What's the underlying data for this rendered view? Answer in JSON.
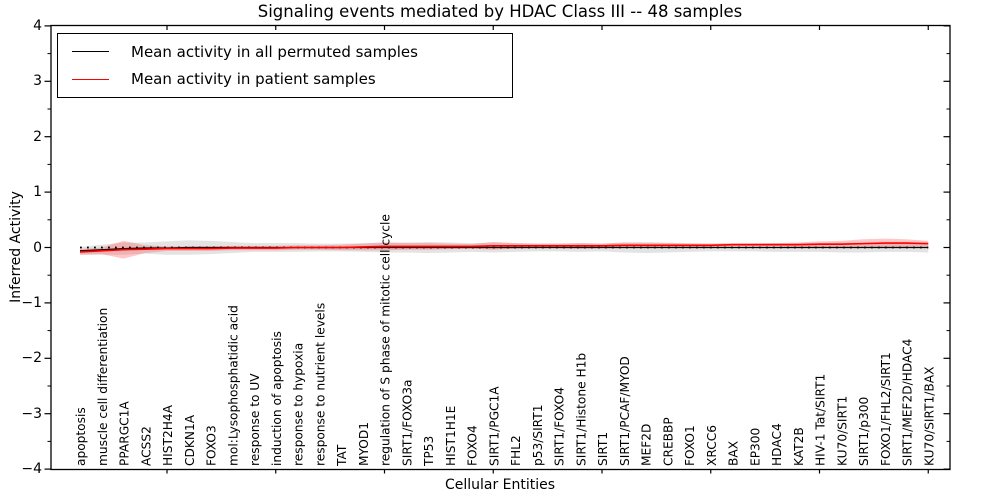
{
  "chart_data": {
    "type": "line",
    "title": "Signaling events mediated by HDAC Class III -- 48 samples",
    "xlabel": "Cellular Entities",
    "ylabel": "Inferred Activity",
    "ylim": [
      -4,
      4
    ],
    "yticks": [
      4,
      3,
      2,
      1,
      0,
      -1,
      -2,
      -3,
      -4
    ],
    "grid": false,
    "legend_position": "upper left",
    "categories": [
      "apoptosis",
      "muscle cell differentiation",
      "PPARGC1A",
      "ACSS2",
      "HIST2H4A",
      "CDKN1A",
      "FOXO3",
      "mol:Lysophosphatidic acid",
      "response to UV",
      "induction of apoptosis",
      "response to hypoxia",
      "response to nutrient levels",
      "TAT",
      "MYOD1",
      "regulation of S phase of mitotic cell cycle",
      "SIRT1/FOXO3a",
      "TP53",
      "HIST1H1E",
      "FOXO4",
      "SIRT1/PGC1A",
      "FHL2",
      "p53/SIRT1",
      "SIRT1/FOXO4",
      "SIRT1/Histone H1b",
      "SIRT1",
      "SIRT1/PCAF/MYOD",
      "MEF2D",
      "CREBBP",
      "FOXO1",
      "XRCC6",
      "BAX",
      "EP300",
      "HDAC4",
      "KAT2B",
      "HIV-1 Tat/SIRT1",
      "KU70/SIRT1",
      "SIRT1/p300",
      "FOXO1/FHL2/SIRT1",
      "SIRT1/MEF2D/HDAC4",
      "KU70/SIRT1/BAX"
    ],
    "series": [
      {
        "name": "Mean activity in all permuted samples",
        "color": "#000000",
        "values": [
          -0.06,
          -0.04,
          -0.02,
          -0.01,
          -0.01,
          0,
          0,
          0,
          0,
          0,
          0,
          0,
          0,
          0,
          0,
          0,
          0,
          0,
          0,
          0,
          0,
          0,
          0,
          0,
          0,
          0,
          0,
          0,
          0,
          0,
          0,
          0,
          0,
          0,
          0,
          0,
          0,
          0,
          0,
          0
        ],
        "band_halfwidth": [
          0.07,
          0.09,
          0.11,
          0.1,
          0.12,
          0.13,
          0.12,
          0.1,
          0.08,
          0.08,
          0.08,
          0.07,
          0.07,
          0.08,
          0.09,
          0.09,
          0.1,
          0.09,
          0.08,
          0.09,
          0.08,
          0.07,
          0.07,
          0.08,
          0.07,
          0.09,
          0.1,
          0.09,
          0.08,
          0.07,
          0.07,
          0.07,
          0.08,
          0.08,
          0.08,
          0.09,
          0.09,
          0.08,
          0.08,
          0.09
        ],
        "band_color": "#999999"
      },
      {
        "name": "Mean activity in patient samples",
        "color": "#ff0000",
        "values": [
          -0.08,
          -0.06,
          -0.04,
          -0.03,
          -0.02,
          -0.02,
          -0.02,
          -0.01,
          -0.01,
          -0.01,
          0,
          0,
          0,
          0.01,
          0.02,
          0.02,
          0.02,
          0.02,
          0.02,
          0.03,
          0.03,
          0.03,
          0.03,
          0.03,
          0.03,
          0.04,
          0.04,
          0.04,
          0.04,
          0.04,
          0.05,
          0.05,
          0.05,
          0.05,
          0.06,
          0.06,
          0.07,
          0.08,
          0.08,
          0.07
        ],
        "band_halfwidth": [
          0.05,
          0.06,
          0.16,
          0.07,
          0.04,
          0.04,
          0.04,
          0.04,
          0.04,
          0.04,
          0.04,
          0.04,
          0.05,
          0.06,
          0.07,
          0.06,
          0.06,
          0.05,
          0.04,
          0.07,
          0.05,
          0.04,
          0.04,
          0.05,
          0.04,
          0.05,
          0.04,
          0.04,
          0.03,
          0.03,
          0.03,
          0.03,
          0.03,
          0.04,
          0.05,
          0.06,
          0.08,
          0.08,
          0.07,
          0.05
        ],
        "band_color": "#ff4444"
      }
    ],
    "zero_reference_line": {
      "value": 0,
      "style": "dotted",
      "color": "#000000"
    }
  }
}
